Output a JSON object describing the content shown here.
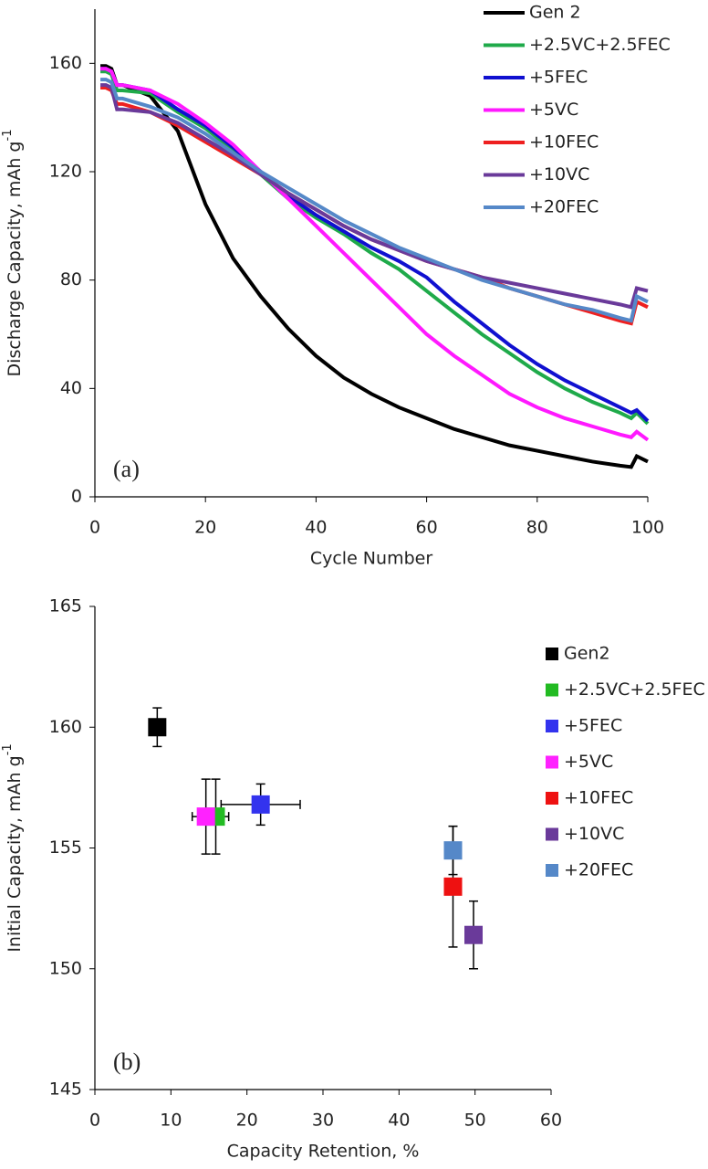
{
  "chart_data": [
    {
      "type": "line",
      "annotation": "(a)",
      "x_label": "Cycle Number",
      "y_label": "Discharge Capacity, mAh g",
      "y_label_sup": "-1",
      "xlim": [
        0,
        100
      ],
      "xticks": [
        0,
        20,
        40,
        60,
        80,
        100
      ],
      "ylim": [
        0,
        180
      ],
      "yticks": [
        0,
        40,
        80,
        120,
        160
      ],
      "x": [
        1,
        2,
        3,
        4,
        5,
        10,
        15,
        20,
        25,
        30,
        35,
        40,
        45,
        50,
        55,
        60,
        65,
        70,
        75,
        80,
        85,
        90,
        95,
        97,
        98,
        100
      ],
      "series": [
        {
          "name": "Gen 2",
          "color": "#000000",
          "values": [
            159,
            159,
            158,
            152,
            152,
            148,
            135,
            108,
            88,
            74,
            62,
            52,
            44,
            38,
            33,
            29,
            25,
            22,
            19,
            17,
            15,
            13,
            11.5,
            11,
            15,
            13
          ]
        },
        {
          "name": "+2.5VC+2.5FEC",
          "color": "#1faa4a",
          "values": [
            157,
            157,
            156,
            150,
            150,
            149,
            142,
            136,
            128,
            119,
            110,
            103,
            97,
            90,
            84,
            76,
            68,
            60,
            53,
            46,
            40,
            35,
            31,
            29,
            31,
            27
          ]
        },
        {
          "name": "+5FEC",
          "color": "#1010d0",
          "values": [
            158,
            158,
            157,
            152,
            152,
            150,
            143,
            137,
            129,
            120,
            111,
            104,
            98,
            92,
            87,
            81,
            72,
            64,
            56,
            49,
            43,
            38,
            33,
            31,
            32,
            28
          ]
        },
        {
          "name": "+5VC",
          "color": "#ff19ff",
          "values": [
            158,
            158,
            157,
            152,
            152,
            150,
            145,
            138,
            130,
            120,
            110,
            100,
            90,
            80,
            70,
            60,
            52,
            45,
            38,
            33,
            29,
            26,
            23,
            22,
            24,
            21
          ]
        },
        {
          "name": "+10FEC",
          "color": "#ee2020",
          "values": [
            151,
            151,
            150,
            145,
            145,
            142,
            137,
            131,
            125,
            119,
            112,
            106,
            100,
            95,
            91,
            87,
            84,
            81,
            77,
            74,
            71,
            68,
            65,
            64,
            72,
            70
          ]
        },
        {
          "name": "+10VC",
          "color": "#6a3a9a",
          "values": [
            152,
            152,
            151,
            143,
            143,
            142,
            138,
            132,
            126,
            119,
            112,
            106,
            100,
            95,
            91,
            87,
            84,
            81,
            79,
            77,
            75,
            73,
            71,
            70,
            77,
            76
          ]
        },
        {
          "name": "+20FEC",
          "color": "#5588c8",
          "values": [
            154,
            154,
            153,
            147,
            147,
            144,
            140,
            134,
            127,
            120,
            114,
            108,
            102,
            97,
            92,
            88,
            84,
            80,
            77,
            74,
            71,
            69,
            66,
            65,
            74,
            72
          ]
        }
      ]
    },
    {
      "type": "scatter",
      "annotation": "(b)",
      "x_label": "Capacity Retention, %",
      "y_label": "Initial Capacity, mAh g",
      "y_label_sup": "-1",
      "xlim": [
        0,
        60
      ],
      "xticks": [
        0,
        10,
        20,
        30,
        40,
        50,
        60
      ],
      "ylim": [
        145,
        165
      ],
      "yticks": [
        145,
        150,
        155,
        160,
        165
      ],
      "series": [
        {
          "name": "Gen2",
          "color": "#000000",
          "x": [
            8.2
          ],
          "values": [
            160.0
          ],
          "yerr": [
            0.8
          ],
          "xerr": [
            null
          ]
        },
        {
          "name": "+2.5VC+2.5FEC",
          "color": "#22bb22",
          "x": [
            15.9
          ],
          "values": [
            156.3
          ],
          "yerr": [
            1.55
          ],
          "xerr": [
            1.7
          ]
        },
        {
          "name": "+5FEC",
          "color": "#3333ee",
          "x": [
            21.8
          ],
          "values": [
            156.8
          ],
          "yerr": [
            0.85
          ],
          "xerr": [
            5.2
          ]
        },
        {
          "name": "+5VC",
          "color": "#ff22ff",
          "x": [
            14.6
          ],
          "values": [
            156.3
          ],
          "yerr": [
            1.55
          ],
          "xerr": [
            1.8
          ]
        },
        {
          "name": "+10FEC",
          "color": "#ee1111",
          "x": [
            47.1
          ],
          "values": [
            153.4
          ],
          "yerr": [
            2.5
          ],
          "xerr": [
            null
          ]
        },
        {
          "name": "+10VC",
          "color": "#6a3a9a",
          "x": [
            49.8
          ],
          "values": [
            151.4
          ],
          "yerr": [
            1.4
          ],
          "xerr": [
            null
          ]
        },
        {
          "name": "+20FEC",
          "color": "#5588c8",
          "x": [
            47.1
          ],
          "values": [
            154.9
          ],
          "yerr": [
            1.0
          ],
          "xerr": [
            null
          ]
        }
      ]
    }
  ]
}
